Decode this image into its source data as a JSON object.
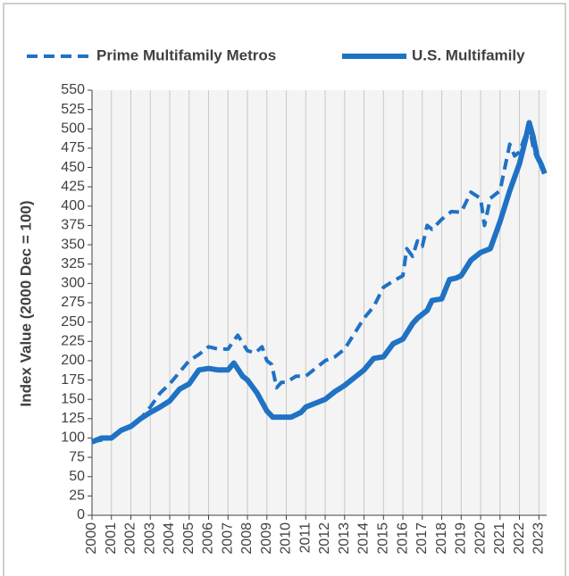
{
  "chart_data": {
    "type": "line",
    "y_label": "Index Value (2000 Dec = 100)",
    "xlim": [
      2000,
      2023.4
    ],
    "xticks": [
      2000,
      2001,
      2002,
      2003,
      2004,
      2005,
      2006,
      2007,
      2008,
      2009,
      2010,
      2011,
      2012,
      2013,
      2014,
      2015,
      2016,
      2017,
      2018,
      2019,
      2020,
      2021,
      2022,
      2023
    ],
    "ylim": [
      0,
      550
    ],
    "yticks": [
      0,
      25,
      50,
      75,
      100,
      125,
      150,
      175,
      200,
      225,
      250,
      275,
      300,
      325,
      350,
      375,
      400,
      425,
      450,
      475,
      500,
      525,
      550
    ],
    "grid": "x",
    "legend": "top",
    "series": [
      {
        "name": "Prime Multifamily Metros",
        "color": "#1f72c4",
        "dash": true,
        "x": [
          2000,
          2001,
          2001.5,
          2002,
          2002.5,
          2003,
          2003.5,
          2004,
          2004.5,
          2005,
          2005.5,
          2006,
          2006.5,
          2007,
          2007.5,
          2008,
          2008.4,
          2008.75,
          2009,
          2009.25,
          2009.5,
          2009.75,
          2010,
          2010.5,
          2011,
          2011.5,
          2012,
          2012.5,
          2013,
          2013.5,
          2014,
          2014.5,
          2015,
          2015.5,
          2016,
          2016.2,
          2016.5,
          2016.75,
          2017,
          2017.25,
          2017.5,
          2018,
          2018.5,
          2019,
          2019.5,
          2020,
          2020.2,
          2020.5,
          2021,
          2021.5,
          2021.75,
          2022,
          2022.5,
          2022.75,
          2023,
          2023.3
        ],
        "values": [
          95,
          100,
          110,
          115,
          125,
          140,
          158,
          170,
          185,
          200,
          208,
          218,
          215,
          215,
          233,
          213,
          210,
          218,
          200,
          195,
          165,
          172,
          172,
          180,
          180,
          190,
          200,
          205,
          215,
          235,
          255,
          270,
          295,
          303,
          310,
          345,
          335,
          355,
          348,
          375,
          370,
          383,
          393,
          392,
          418,
          410,
          375,
          410,
          420,
          480,
          465,
          470,
          505,
          470,
          460,
          445
        ]
      },
      {
        "name": "U.S. Multifamily",
        "color": "#1f72c4",
        "dash": false,
        "x": [
          2000,
          2000.5,
          2001,
          2001.5,
          2002,
          2002.5,
          2003,
          2003.5,
          2004,
          2004.5,
          2005,
          2005.5,
          2006,
          2006.5,
          2007,
          2007.3,
          2007.75,
          2008,
          2008.5,
          2009,
          2009.3,
          2009.75,
          2010.25,
          2010.75,
          2011,
          2011.5,
          2012,
          2012.5,
          2013,
          2013.5,
          2014,
          2014.5,
          2015,
          2015.5,
          2016,
          2016.5,
          2016.75,
          2017.25,
          2017.5,
          2018,
          2018.4,
          2018.75,
          2019,
          2019.5,
          2020,
          2020.5,
          2021,
          2021.5,
          2022,
          2022.3,
          2022.5,
          2022.7,
          2022.9,
          2023.1,
          2023.3
        ],
        "values": [
          95,
          100,
          100,
          110,
          115,
          125,
          133,
          140,
          148,
          163,
          170,
          188,
          190,
          188,
          188,
          197,
          180,
          175,
          158,
          135,
          127,
          127,
          127,
          133,
          140,
          145,
          150,
          160,
          168,
          178,
          188,
          203,
          205,
          222,
          228,
          248,
          255,
          265,
          278,
          280,
          305,
          307,
          310,
          330,
          340,
          345,
          380,
          420,
          455,
          485,
          508,
          490,
          465,
          455,
          442
        ]
      }
    ]
  }
}
